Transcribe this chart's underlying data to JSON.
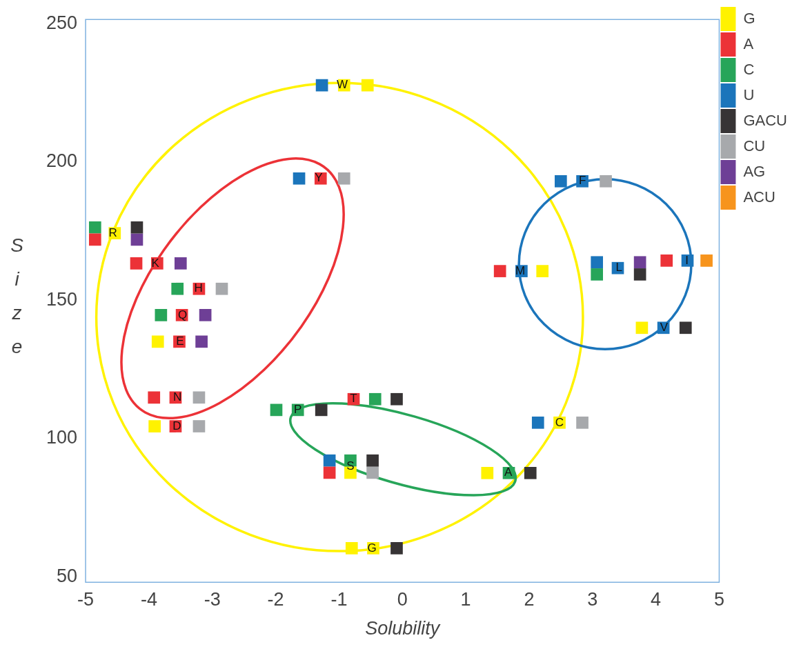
{
  "chart_data": {
    "type": "scatter",
    "xlabel": "Solubility",
    "ylabel": "Size",
    "xlim": [
      -5,
      5
    ],
    "ylim": [
      48,
      251.5
    ],
    "xticks": [
      -5,
      -4,
      -3,
      -2,
      -1,
      0,
      1,
      2,
      3,
      4,
      5
    ],
    "yticks": [
      50,
      100,
      150,
      200,
      250
    ],
    "marker": "square",
    "legend": "top right",
    "series": [
      {
        "name": "G",
        "color": "#fff200",
        "x": [
          -0.92,
          -0.55,
          -4.54,
          -3.86,
          -3.91,
          -0.82,
          -0.8,
          -0.46,
          2.48,
          1.34,
          2.21,
          3.78
        ],
        "values": [
          227.7,
          227.7,
          174.2,
          135.0,
          104.4,
          87.6,
          60.3,
          60.3,
          105.7,
          87.5,
          160.5,
          140.0
        ]
      },
      {
        "name": "A",
        "color": "#ec3237",
        "x": [
          -1.29,
          -4.85,
          -4.2,
          -3.87,
          -3.21,
          -3.48,
          -3.52,
          -3.92,
          -3.58,
          -3.58,
          -0.77,
          -1.15,
          1.54,
          4.17
        ],
        "values": [
          194.0,
          171.9,
          163.3,
          163.3,
          154.1,
          144.6,
          135.0,
          114.8,
          114.8,
          104.4,
          114.2,
          87.6,
          160.5,
          164.3
        ]
      },
      {
        "name": "C",
        "color": "#27a559",
        "x": [
          -4.85,
          -3.55,
          -3.81,
          -1.99,
          -1.65,
          -0.43,
          -0.82,
          1.68,
          3.07
        ],
        "values": [
          176.3,
          154.1,
          144.6,
          110.3,
          110.3,
          114.2,
          92.0,
          87.5,
          159.3
        ]
      },
      {
        "name": "U",
        "color": "#1b75bb",
        "x": [
          -1.27,
          -1.63,
          -1.15,
          2.14,
          2.5,
          2.84,
          1.88,
          3.07,
          3.4,
          4.5,
          4.12
        ],
        "values": [
          227.7,
          194.0,
          92.0,
          105.7,
          193.0,
          193.0,
          160.5,
          163.7,
          161.6,
          164.3,
          140.0
        ]
      },
      {
        "name": "GACU",
        "color": "#373435",
        "x": [
          -4.19,
          -1.28,
          -0.09,
          -0.47,
          -0.09,
          2.02,
          3.75,
          4.47
        ],
        "values": [
          176.3,
          110.3,
          114.2,
          92.0,
          60.3,
          87.5,
          159.3,
          140.0
        ]
      },
      {
        "name": "CU",
        "color": "#a7a9ac",
        "x": [
          -0.92,
          -2.85,
          -3.21,
          -3.21,
          -0.47,
          2.84,
          3.21
        ],
        "values": [
          194.0,
          154.1,
          114.8,
          104.4,
          87.6,
          105.7,
          193.0
        ]
      },
      {
        "name": "AG",
        "color": "#6e3f96",
        "x": [
          -4.19,
          -3.5,
          -3.11,
          -3.17,
          3.75
        ],
        "values": [
          171.9,
          163.3,
          144.6,
          135.0,
          163.7
        ]
      },
      {
        "name": "ACU",
        "color": "#f7941d",
        "x": [
          4.8
        ],
        "values": [
          164.3
        ]
      }
    ],
    "annotations": [
      {
        "text": "W",
        "x": -0.95,
        "y": 227.7
      },
      {
        "text": "Y",
        "x": -1.32,
        "y": 194.0
      },
      {
        "text": "R",
        "x": -4.57,
        "y": 174.2
      },
      {
        "text": "K",
        "x": -3.9,
        "y": 163.3
      },
      {
        "text": "H",
        "x": -3.22,
        "y": 154.1
      },
      {
        "text": "Q",
        "x": -3.47,
        "y": 144.6
      },
      {
        "text": "E",
        "x": -3.51,
        "y": 135.0
      },
      {
        "text": "N",
        "x": -3.55,
        "y": 114.8
      },
      {
        "text": "D",
        "x": -3.56,
        "y": 104.4
      },
      {
        "text": "P",
        "x": -1.65,
        "y": 110.3
      },
      {
        "text": "T",
        "x": -0.77,
        "y": 114.2
      },
      {
        "text": "S",
        "x": -0.82,
        "y": 89.8
      },
      {
        "text": "G",
        "x": -0.48,
        "y": 60.3
      },
      {
        "text": "C",
        "x": 2.48,
        "y": 105.7
      },
      {
        "text": "A",
        "x": 1.67,
        "y": 87.5
      },
      {
        "text": "F",
        "x": 2.84,
        "y": 193.0
      },
      {
        "text": "M",
        "x": 1.86,
        "y": 160.5
      },
      {
        "text": "L",
        "x": 3.42,
        "y": 161.6
      },
      {
        "text": "I",
        "x": 4.49,
        "y": 164.3
      },
      {
        "text": "V",
        "x": 4.13,
        "y": 140.0
      }
    ]
  }
}
